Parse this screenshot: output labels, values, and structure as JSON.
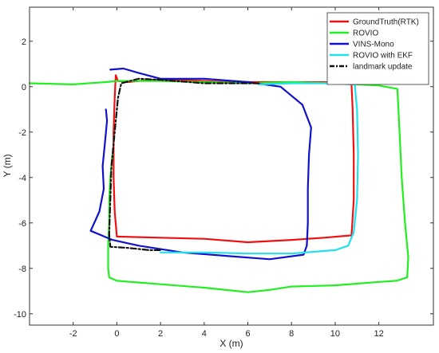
{
  "chart_data": {
    "type": "line",
    "xlabel": "X (m)",
    "ylabel": "Y (m)",
    "xlim": [
      -4,
      14.5
    ],
    "ylim": [
      -10.5,
      3.5
    ],
    "x_ticks": [
      -2,
      0,
      2,
      4,
      6,
      8,
      10,
      12
    ],
    "y_ticks": [
      2,
      0,
      -2,
      -4,
      -6,
      -8,
      -10
    ],
    "grid": false,
    "legend_position": "top-right",
    "series": [
      {
        "name": "GroundTruth(RTK)",
        "color": "#ee1111",
        "dash": "solid",
        "points": [
          [
            -0.05,
            0.5
          ],
          [
            -0.1,
            -0.5
          ],
          [
            -0.15,
            -2
          ],
          [
            -0.15,
            -4
          ],
          [
            -0.1,
            -5.5
          ],
          [
            0.0,
            -6.6
          ],
          [
            2,
            -6.65
          ],
          [
            4,
            -6.7
          ],
          [
            6,
            -6.85
          ],
          [
            8,
            -6.75
          ],
          [
            9.5,
            -6.65
          ],
          [
            10.75,
            -6.55
          ],
          [
            10.85,
            -5
          ],
          [
            10.85,
            -3
          ],
          [
            10.8,
            -1
          ],
          [
            10.75,
            0.1
          ],
          [
            9.5,
            0.2
          ],
          [
            7,
            0.2
          ],
          [
            5,
            0.2
          ],
          [
            3,
            0.3
          ],
          [
            1.5,
            0.3
          ],
          [
            0.5,
            0.2
          ],
          [
            0.05,
            0.25
          ],
          [
            -0.05,
            0.5
          ]
        ]
      },
      {
        "name": "ROVIO",
        "color": "#22ee22",
        "dash": "solid",
        "points": [
          [
            -4,
            0.15
          ],
          [
            -2,
            0.1
          ],
          [
            -0.5,
            0.2
          ],
          [
            0,
            0.25
          ],
          [
            2,
            0.25
          ],
          [
            4,
            0.2
          ],
          [
            6,
            0.15
          ],
          [
            8,
            0.2
          ],
          [
            10,
            0.15
          ],
          [
            12,
            0.05
          ],
          [
            12.85,
            -0.1
          ],
          [
            12.95,
            -2
          ],
          [
            13.05,
            -4
          ],
          [
            13.2,
            -6
          ],
          [
            13.35,
            -7.5
          ],
          [
            13.3,
            -8.4
          ],
          [
            12.8,
            -8.55
          ],
          [
            12,
            -8.6
          ],
          [
            10,
            -8.75
          ],
          [
            8,
            -8.8
          ],
          [
            7,
            -8.95
          ],
          [
            6,
            -9.05
          ],
          [
            4,
            -8.85
          ],
          [
            2,
            -8.7
          ],
          [
            0,
            -8.55
          ],
          [
            -0.35,
            -8.4
          ],
          [
            -0.4,
            -8
          ],
          [
            -0.4,
            -7
          ],
          [
            -0.35,
            -6
          ],
          [
            -0.35,
            -5
          ],
          [
            -0.3,
            -4
          ],
          [
            -0.2,
            -3
          ]
        ]
      },
      {
        "name": "VINS-Mono",
        "color": "#1111cc",
        "dash": "solid",
        "points": [
          [
            -0.3,
            0.75
          ],
          [
            0.3,
            0.8
          ],
          [
            1,
            0.6
          ],
          [
            2,
            0.35
          ],
          [
            4,
            0.35
          ],
          [
            6,
            0.2
          ],
          [
            7.5,
            0
          ],
          [
            8.5,
            -0.8
          ],
          [
            8.9,
            -1.8
          ],
          [
            8.8,
            -3
          ],
          [
            8.75,
            -4.5
          ],
          [
            8.75,
            -6
          ],
          [
            8.7,
            -7
          ],
          [
            8.55,
            -7.4
          ],
          [
            7,
            -7.6
          ],
          [
            5,
            -7.45
          ],
          [
            3,
            -7.3
          ],
          [
            1,
            -7
          ],
          [
            -0.2,
            -6.75
          ],
          [
            -1.2,
            -6.35
          ],
          [
            -0.8,
            -5.5
          ],
          [
            -0.6,
            -4.5
          ],
          [
            -0.65,
            -3.5
          ],
          [
            -0.55,
            -2.5
          ],
          [
            -0.45,
            -1.5
          ],
          [
            -0.5,
            -1
          ]
        ]
      },
      {
        "name": "ROVIO with EKF",
        "color": "#22e0ee",
        "dash": "solid",
        "points": [
          [
            6.5,
            0.1
          ],
          [
            8,
            0.15
          ],
          [
            9.5,
            0.15
          ],
          [
            10.9,
            0.1
          ],
          [
            11,
            -1
          ],
          [
            11.05,
            -3
          ],
          [
            11.0,
            -5
          ],
          [
            10.85,
            -6.4
          ],
          [
            10.6,
            -7
          ],
          [
            10,
            -7.2
          ],
          [
            8,
            -7.35
          ],
          [
            6,
            -7.35
          ],
          [
            4,
            -7.3
          ],
          [
            2,
            -7.3
          ]
        ]
      },
      {
        "name": "landmark update",
        "color": "#111111",
        "dash": "dashdot",
        "points": [
          [
            6.5,
            0.15
          ],
          [
            4,
            0.15
          ],
          [
            2,
            0.3
          ],
          [
            1,
            0.35
          ],
          [
            0.2,
            0.15
          ],
          [
            0.05,
            -0.5
          ],
          [
            -0.1,
            -2
          ],
          [
            -0.25,
            -3.5
          ],
          [
            -0.3,
            -5
          ],
          [
            -0.35,
            -6.5
          ],
          [
            -0.3,
            -7.05
          ],
          [
            0.5,
            -7.1
          ],
          [
            1.5,
            -7.2
          ],
          [
            2,
            -7.2
          ]
        ]
      }
    ]
  }
}
